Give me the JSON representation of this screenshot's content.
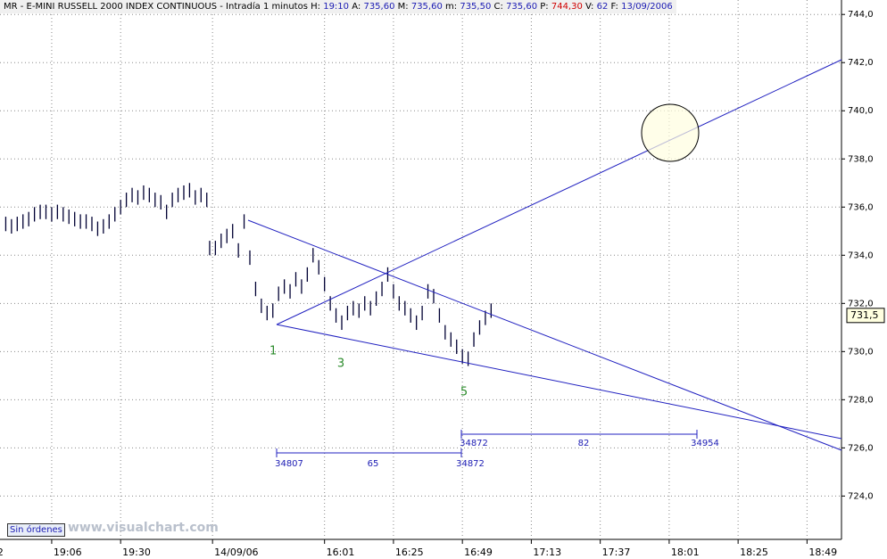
{
  "chart_data": {
    "type": "ohlc",
    "header": [
      {
        "label": "MR - E-MINI RUSSELL 2000 INDEX CONTINUOUS - Intradía 1 minutos"
      },
      {
        "label": "H:",
        "value": "19:10"
      },
      {
        "label": "A:",
        "value": "735,60"
      },
      {
        "label": "M:",
        "value": "735,60"
      },
      {
        "label": "m:",
        "value": "735,50"
      },
      {
        "label": "C:",
        "value": "735,60"
      },
      {
        "label": "P:",
        "value": "744,30"
      },
      {
        "label": "V:",
        "value": "62"
      },
      {
        "label": "F:",
        "value": "13/09/2006"
      }
    ],
    "color": "#000033",
    "x": [
      2,
      4,
      6,
      8,
      10,
      12,
      14,
      16,
      18,
      20,
      22,
      24,
      26,
      28,
      30,
      32,
      34,
      36,
      38,
      40,
      42,
      44,
      46,
      48,
      50,
      52,
      54,
      56,
      58,
      60,
      62,
      64,
      66,
      68,
      70,
      72,
      73,
      75,
      77,
      79,
      81,
      83,
      85,
      87,
      89,
      91,
      93,
      95,
      97,
      99,
      101,
      103,
      105,
      107,
      109,
      111,
      113,
      115,
      117,
      119,
      121,
      123,
      125,
      127,
      129,
      131,
      133,
      135,
      137,
      139,
      141,
      143,
      145,
      147,
      149,
      151,
      153,
      155,
      157,
      159,
      161,
      163,
      165,
      167,
      169,
      171
    ],
    "high": [
      735.6,
      735.5,
      735.6,
      735.7,
      735.8,
      736.0,
      736.1,
      736.1,
      736.0,
      736.1,
      736.0,
      735.9,
      735.8,
      735.7,
      735.7,
      735.6,
      735.4,
      735.5,
      735.7,
      736.0,
      736.3,
      736.6,
      736.8,
      736.7,
      736.9,
      736.8,
      736.6,
      736.5,
      736.1,
      736.6,
      736.8,
      736.9,
      737.0,
      736.7,
      736.8,
      736.6,
      734.6,
      734.6,
      734.9,
      735.1,
      735.3,
      734.5,
      735.7,
      734.2,
      732.9,
      732.2,
      731.9,
      732.0,
      732.7,
      733.0,
      732.8,
      733.3,
      733.0,
      733.5,
      734.3,
      733.8,
      733.1,
      732.3,
      731.8,
      731.5,
      731.9,
      732.1,
      732.0,
      732.3,
      732.1,
      732.5,
      732.9,
      733.5,
      732.8,
      732.3,
      732.1,
      731.8,
      731.5,
      731.9,
      732.8,
      732.6,
      731.8,
      731.1,
      730.8,
      730.5,
      730.1,
      730.0,
      730.8,
      731.3,
      731.7,
      732.0
    ],
    "low": [
      735.0,
      734.9,
      735.0,
      735.1,
      735.2,
      735.4,
      735.5,
      735.5,
      735.4,
      735.5,
      735.4,
      735.3,
      735.2,
      735.1,
      735.1,
      735.0,
      734.8,
      734.9,
      735.1,
      735.4,
      735.7,
      736.0,
      736.2,
      736.1,
      736.3,
      736.2,
      736.0,
      735.9,
      735.5,
      736.0,
      736.2,
      736.3,
      736.4,
      736.1,
      736.2,
      736.0,
      734.0,
      734.0,
      734.3,
      734.5,
      734.7,
      733.9,
      735.1,
      733.6,
      732.3,
      731.6,
      731.3,
      731.4,
      732.1,
      732.4,
      732.2,
      732.7,
      732.4,
      732.9,
      733.7,
      733.2,
      732.5,
      731.7,
      731.2,
      730.9,
      731.3,
      731.5,
      731.4,
      731.7,
      731.5,
      731.9,
      732.3,
      732.9,
      732.2,
      731.7,
      731.5,
      731.2,
      730.9,
      731.3,
      732.2,
      732.0,
      731.2,
      730.5,
      730.2,
      729.9,
      729.5,
      729.4,
      730.2,
      730.7,
      731.1,
      731.4
    ],
    "xlim": [
      0,
      293
    ],
    "xticks": [
      {
        "value": -1.6,
        "label": "2"
      },
      {
        "value": 18,
        "label": "19:06"
      },
      {
        "value": 42,
        "label": "19:30"
      },
      {
        "value": 74,
        "label": "14/09/06"
      },
      {
        "value": 113,
        "label": "16:01"
      },
      {
        "value": 137,
        "label": "16:25"
      },
      {
        "value": 161,
        "label": "16:49"
      },
      {
        "value": 185,
        "label": "17:13"
      },
      {
        "value": 209,
        "label": "17:37"
      },
      {
        "value": 233,
        "label": "18:01"
      },
      {
        "value": 257,
        "label": "18:25"
      },
      {
        "value": 281,
        "label": "18:49"
      }
    ],
    "ylim": [
      722.2,
      744.6
    ],
    "yticks": [
      {
        "value": 724,
        "label": "724,0"
      },
      {
        "value": 726,
        "label": "726,0"
      },
      {
        "value": 728,
        "label": "728,0"
      },
      {
        "value": 730,
        "label": "730,0"
      },
      {
        "value": 732,
        "label": "732,0"
      },
      {
        "value": 734,
        "label": "734,0"
      },
      {
        "value": 736,
        "label": "736,0"
      },
      {
        "value": 738,
        "label": "738,0"
      },
      {
        "value": 740,
        "label": "740,0"
      },
      {
        "value": 742,
        "label": "742,0"
      },
      {
        "value": 744,
        "label": "744,0"
      }
    ],
    "last": {
      "value": 731.5,
      "label": "731,5"
    },
    "grid": true,
    "annotations": {
      "wave1": "1",
      "wave3": "3",
      "wave5": "5",
      "m1_start": "34807",
      "m1_count": "65",
      "m1_end": "34872",
      "m2_start": "34872",
      "m2_count": "82",
      "m2_end": "34954"
    },
    "status": "Sin órdenes",
    "watermark": "www.visualchart.com"
  }
}
